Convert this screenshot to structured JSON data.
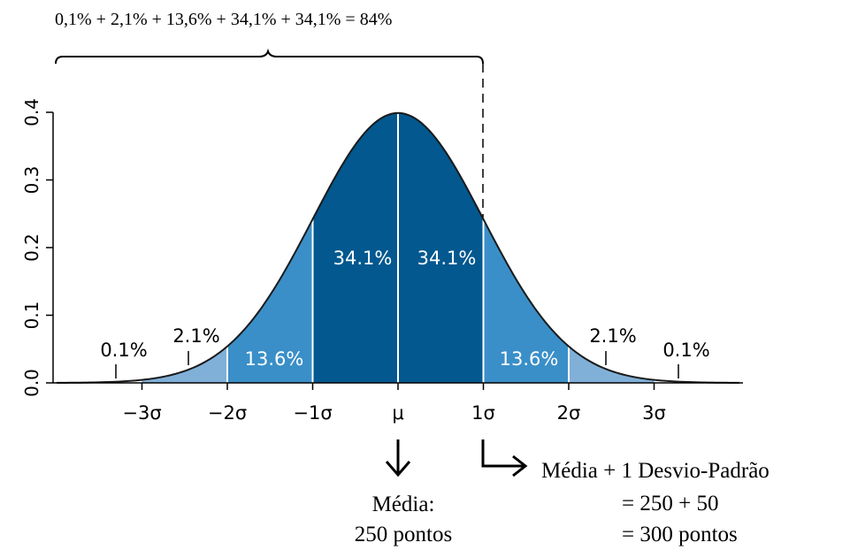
{
  "top_sum": "0,1% + 2,1% + 13,6% + 34,1% + 34,1% = 84%",
  "chart_data": {
    "type": "area",
    "title": "",
    "xlabel": "",
    "ylabel": "",
    "distribution": "normal",
    "mean": 0,
    "sd": 1,
    "xlim": [
      -4,
      4
    ],
    "ylim": [
      0,
      0.4
    ],
    "yticks": [
      "0.0",
      "0.1",
      "0.2",
      "0.3",
      "0.4"
    ],
    "xticks": [
      {
        "label": "−3σ",
        "value": -3
      },
      {
        "label": "−2σ",
        "value": -2
      },
      {
        "label": "−1σ",
        "value": -1
      },
      {
        "label": "μ",
        "value": 0
      },
      {
        "label": "1σ",
        "value": 1
      },
      {
        "label": "2σ",
        "value": 2
      },
      {
        "label": "3σ",
        "value": 3
      }
    ],
    "regions": [
      {
        "from": -3,
        "to": -2,
        "percent": "2.1%",
        "color": "#80b0d8"
      },
      {
        "from": -2,
        "to": -1,
        "percent": "13.6%",
        "color": "#3a8fc8"
      },
      {
        "from": -1,
        "to": 0,
        "percent": "34.1%",
        "color": "#02588f"
      },
      {
        "from": 0,
        "to": 1,
        "percent": "34.1%",
        "color": "#02588f"
      },
      {
        "from": 1,
        "to": 2,
        "percent": "13.6%",
        "color": "#3a8fc8"
      },
      {
        "from": 2,
        "to": 3,
        "percent": "2.1%",
        "color": "#80b0d8"
      }
    ],
    "tail_labels": [
      {
        "at": -3.5,
        "percent": "0.1%"
      },
      {
        "at": 3.5,
        "percent": "0.1%"
      }
    ],
    "grid": false
  },
  "annotations": {
    "mean_label": "Média:",
    "mean_value": "250 pontos",
    "sd_line1": "Média + 1 Desvio-Padrão",
    "sd_line2": "= 250 + 50",
    "sd_line3": "= 300 pontos"
  }
}
